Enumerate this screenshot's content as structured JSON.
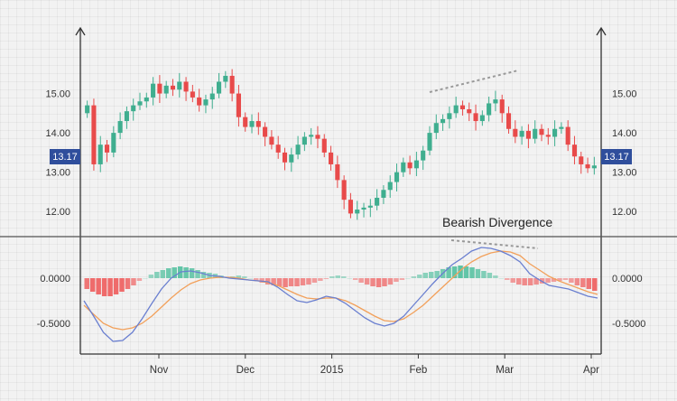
{
  "chart_data": [
    {
      "type": "candlestick",
      "title": "",
      "xlabel": "",
      "ylabel": "",
      "x_ticks": [
        "Nov",
        "Dec",
        "2015",
        "Feb",
        "Mar",
        "Apr"
      ],
      "y_ticks": [
        "15.00",
        "14.00",
        "13.00",
        "12.00"
      ],
      "ylim": [
        11.5,
        16.0
      ],
      "current_price_label": "13.17",
      "annotation": "Bearish Divergence",
      "up_color": "#3fae8f",
      "down_color": "#e84a4a",
      "closes": [
        14.7,
        13.2,
        13.7,
        13.5,
        14.0,
        14.3,
        14.55,
        14.7,
        14.8,
        14.9,
        15.25,
        15.0,
        15.2,
        15.1,
        15.3,
        15.05,
        14.9,
        14.7,
        14.85,
        15.0,
        15.3,
        15.45,
        15.0,
        14.4,
        14.15,
        14.3,
        14.15,
        13.9,
        13.7,
        13.5,
        13.25,
        13.45,
        13.7,
        13.9,
        13.95,
        13.85,
        13.5,
        13.2,
        12.8,
        12.3,
        11.95,
        12.05,
        12.1,
        12.15,
        12.35,
        12.55,
        12.75,
        13.0,
        13.25,
        13.1,
        13.3,
        13.55,
        14.0,
        14.25,
        14.35,
        14.5,
        14.7,
        14.6,
        14.5,
        14.3,
        14.45,
        14.75,
        14.85,
        14.5,
        14.1,
        13.9,
        14.05,
        13.85,
        14.1,
        13.95,
        13.9,
        14.1,
        14.15,
        13.7,
        13.4,
        13.2,
        13.1,
        13.17
      ],
      "indicator": {
        "y_ticks": [
          "0.0000",
          "-0.5000"
        ],
        "ylim": [
          -0.8,
          0.4
        ],
        "macd_color": "#6a7fd0",
        "signal_color": "#f2a05a",
        "macd": [
          -0.25,
          -0.42,
          -0.6,
          -0.7,
          -0.69,
          -0.6,
          -0.45,
          -0.28,
          -0.12,
          0.0,
          0.07,
          0.08,
          0.06,
          0.03,
          0.02,
          0.0,
          -0.01,
          -0.02,
          -0.03,
          -0.04,
          -0.1,
          -0.18,
          -0.25,
          -0.27,
          -0.24,
          -0.2,
          -0.22,
          -0.28,
          -0.36,
          -0.44,
          -0.5,
          -0.53,
          -0.5,
          -0.42,
          -0.3,
          -0.18,
          -0.06,
          0.05,
          0.15,
          0.22,
          0.3,
          0.34,
          0.33,
          0.3,
          0.25,
          0.18,
          0.05,
          -0.02,
          -0.08,
          -0.1,
          -0.12,
          -0.16,
          -0.2,
          -0.22
        ],
        "signal": [
          -0.3,
          -0.4,
          -0.5,
          -0.55,
          -0.57,
          -0.55,
          -0.5,
          -0.42,
          -0.32,
          -0.22,
          -0.13,
          -0.06,
          -0.02,
          0.0,
          0.01,
          0.01,
          0.0,
          -0.02,
          -0.03,
          -0.05,
          -0.08,
          -0.13,
          -0.18,
          -0.22,
          -0.23,
          -0.22,
          -0.22,
          -0.25,
          -0.3,
          -0.36,
          -0.42,
          -0.47,
          -0.48,
          -0.45,
          -0.38,
          -0.3,
          -0.2,
          -0.1,
          0.0,
          0.1,
          0.18,
          0.24,
          0.28,
          0.3,
          0.29,
          0.25,
          0.16,
          0.09,
          0.02,
          -0.03,
          -0.07,
          -0.11,
          -0.15,
          -0.18
        ],
        "histogram": [
          -0.12,
          -0.15,
          -0.18,
          -0.2,
          -0.2,
          -0.18,
          -0.15,
          -0.12,
          -0.08,
          -0.03,
          0.0,
          0.04,
          0.07,
          0.09,
          0.11,
          0.12,
          0.13,
          0.12,
          0.11,
          0.09,
          0.07,
          0.06,
          0.05,
          0.03,
          0.01,
          0.02,
          0.03,
          0.02,
          0.0,
          -0.03,
          -0.05,
          -0.07,
          -0.08,
          -0.09,
          -0.1,
          -0.09,
          -0.09,
          -0.08,
          -0.07,
          -0.05,
          -0.03,
          -0.01,
          0.02,
          0.03,
          0.02,
          0.0,
          -0.02,
          -0.05,
          -0.07,
          -0.09,
          -0.1,
          -0.09,
          -0.07,
          -0.04,
          -0.02,
          0.0,
          0.02,
          0.04,
          0.06,
          0.07,
          0.08,
          0.1,
          0.12,
          0.13,
          0.14,
          0.13,
          0.12,
          0.1,
          0.08,
          0.06,
          0.03,
          0.0,
          -0.02,
          -0.05,
          -0.07,
          -0.08,
          -0.08,
          -0.07,
          -0.06,
          -0.05,
          -0.04,
          -0.03,
          -0.02,
          -0.05,
          -0.08,
          -0.1,
          -0.12,
          -0.14
        ]
      }
    }
  ]
}
